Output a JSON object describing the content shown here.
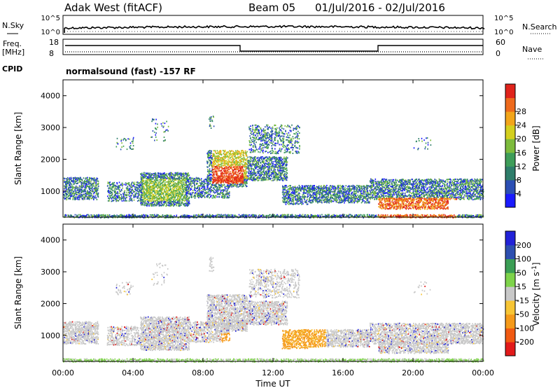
{
  "header": {
    "station": "Adak West (fitACF)",
    "beam": "Beam 05",
    "date_range": "01/Jul/2016 - 02/Jul/2016"
  },
  "strips": {
    "nsky_label": "N.Sky",
    "nsky_ticks": [
      "10^5",
      "10^0"
    ],
    "nsearch_label": "N.Search",
    "nsearch_ticks": [
      "10^5",
      "10^0"
    ],
    "freq_label": "Freq.",
    "freq_unit": "[MHz]",
    "freq_ticks": [
      "18",
      "8"
    ],
    "nave_label": "Nave",
    "nave_ticks": [
      "60",
      "0"
    ],
    "cpid_label": "CPID",
    "cpid_text": "normalsound (fast) -157 RF"
  },
  "xaxis": {
    "title": "Time UT",
    "ticks": [
      "00:00",
      "04:00",
      "08:00",
      "12:00",
      "16:00",
      "20:00",
      "00:00"
    ]
  },
  "chart_data": [
    {
      "type": "heatmap",
      "panel": "power",
      "ylabel": "Slant Range [km]",
      "yticks": [
        "1000",
        "2000",
        "3000",
        "4000"
      ],
      "ylim": [
        180,
        4500
      ],
      "xlim_hours": [
        0,
        24
      ],
      "colorbar": {
        "label": "Power [dB]",
        "ticks": [
          "4",
          "8",
          "12",
          "16",
          "20",
          "24",
          "28"
        ],
        "colors": [
          "#1a1aff",
          "#2c4fb4",
          "#2e7d6a",
          "#3e9d59",
          "#7dbb3c",
          "#d4cf1e",
          "#f2a51a",
          "#ee6a1c",
          "#e0231b"
        ]
      }
    },
    {
      "type": "heatmap",
      "panel": "velocity",
      "ylabel": "Slant Range [km]",
      "yticks": [
        "1000",
        "2000",
        "3000",
        "4000"
      ],
      "ylim": [
        180,
        4500
      ],
      "xlim_hours": [
        0,
        24
      ],
      "colorbar": {
        "label": "Velocity [m s^-1]",
        "ticks": [
          "-200",
          "-100",
          "-50",
          "-15",
          "15",
          "50",
          "100",
          "200"
        ],
        "colors": [
          "#e21a1a",
          "#f15a12",
          "#f59a1a",
          "#f7c535",
          "#c8c8c8",
          "#7ed34a",
          "#3b9e55",
          "#2d4fb0",
          "#2222d8"
        ]
      }
    }
  ]
}
